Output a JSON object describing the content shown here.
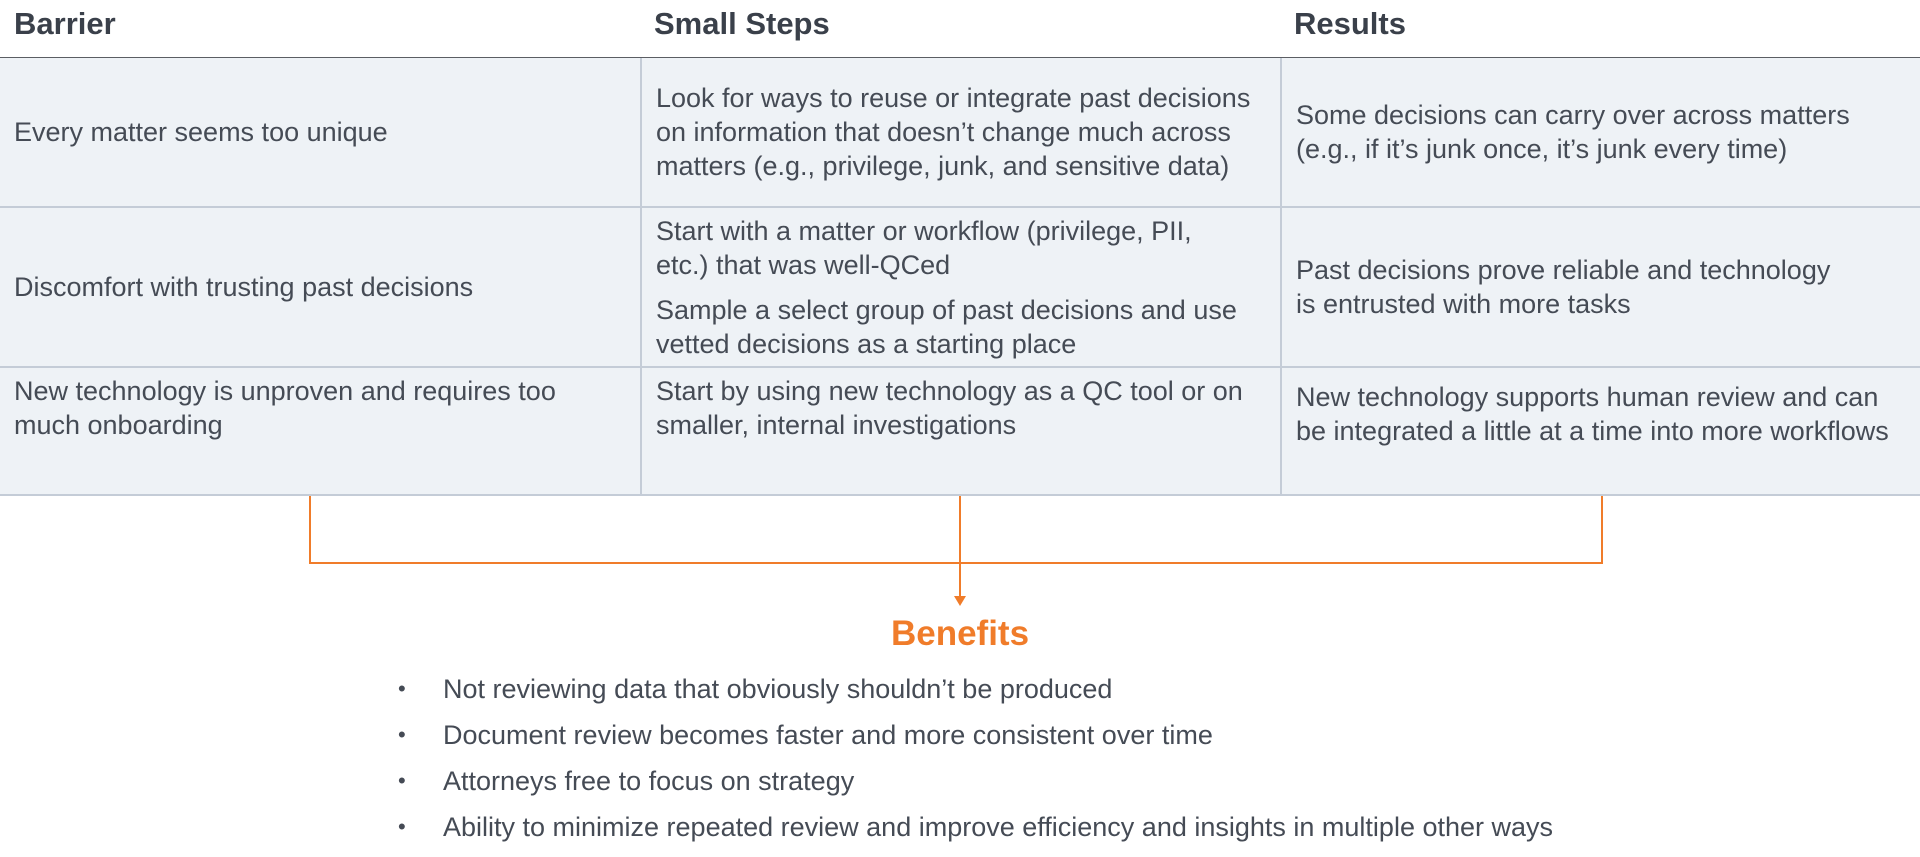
{
  "table": {
    "headers": [
      "Barrier",
      "Small Steps",
      "Results"
    ],
    "rows": [
      {
        "barrier": "Every matter seems too unique",
        "steps": [
          "Look for ways to reuse or integrate past decisions on information that doesn’t change much across matters (e.g., privilege, junk, and sensitive data)"
        ],
        "result": "Some decisions can carry over across matters (e.g., if it’s junk once, it’s junk every time)"
      },
      {
        "barrier": "Discomfort with trusting past decisions",
        "steps": [
          "Start with a matter or workflow (privilege, PII, etc.) that was well-QCed",
          "Sample a select group of past decisions and use vetted decisions as a starting place"
        ],
        "result": "Past decisions prove reliable and technology is entrusted with more tasks"
      },
      {
        "barrier": "New technology is unproven and requires too much onboarding",
        "steps": [
          "Start by using new technology as a QC tool or on smaller, internal investigations"
        ],
        "result": "New technology supports human review and can be integrated a little at a time into more workflows"
      }
    ]
  },
  "benefits": {
    "title": "Benefits",
    "bullet": "•",
    "items": [
      "Not reviewing data that obviously shouldn’t be produced",
      "Document review becomes faster and more consistent over time",
      "Attorneys free to focus on strategy",
      "Ability to minimize repeated review and improve efficiency and insights in multiple other ways"
    ]
  },
  "colors": {
    "accent": "#f07c2a",
    "row_background": "#eef2f6",
    "grid_line": "#c4ccd7",
    "text": "#454b55"
  }
}
